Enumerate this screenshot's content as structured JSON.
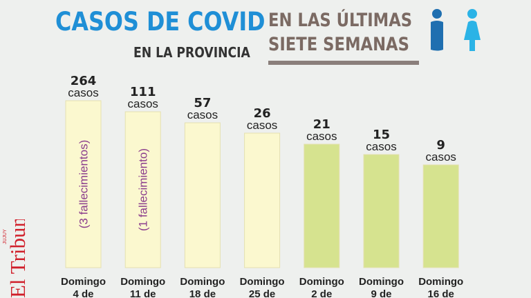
{
  "header": {
    "title": "CASOS DE COVID",
    "subtitle": "EN LA PROVINCIA",
    "right_line1": "EN LAS ÚLTIMAS",
    "right_line2": "SIETE  SEMANAS"
  },
  "brand": {
    "small": "JUJUY",
    "name": "El Tribuno"
  },
  "icons": {
    "male": "male-person-icon",
    "female": "female-person-icon"
  },
  "colors": {
    "title_blue": "#1f8fd6",
    "bar_yellow": "#fbf8cf",
    "bar_green": "#d6e38f",
    "note_purple": "#8a3b8c",
    "brand_red": "#d01f2a"
  },
  "chart_data": {
    "type": "bar",
    "categories": [
      "Domingo 4 de",
      "Domingo 11 de",
      "Domingo 18 de",
      "Domingo 25 de",
      "Domingo 2 de",
      "Domingo 9 de",
      "Domingo 16 de"
    ],
    "values": [
      264,
      111,
      57,
      26,
      21,
      15,
      9
    ],
    "value_unit": "casos",
    "notes": [
      "(3 fallecimientos)",
      "(1 fallecimiento)",
      "",
      "",
      "",
      "",
      ""
    ],
    "bar_colors": [
      "#fbf8cf",
      "#fbf8cf",
      "#fbf8cf",
      "#fbf8cf",
      "#d6e38f",
      "#d6e38f",
      "#d6e38f"
    ],
    "title": "CASOS DE COVID",
    "xlabel": "",
    "ylabel": "",
    "grid": false
  }
}
